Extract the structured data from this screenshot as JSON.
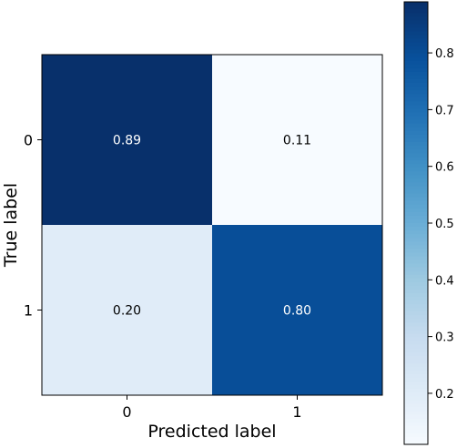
{
  "chart_data": {
    "type": "heatmap",
    "title": "",
    "xlabel": "Predicted label",
    "ylabel": "True label",
    "x_categories": [
      "0",
      "1"
    ],
    "y_categories": [
      "0",
      "1"
    ],
    "values": [
      [
        0.89,
        0.11
      ],
      [
        0.2,
        0.8
      ]
    ],
    "cell_labels": [
      [
        "0.89",
        "0.11"
      ],
      [
        "0.20",
        "0.80"
      ]
    ],
    "colormap": "Blues",
    "colorbar": {
      "range": [
        0.11,
        0.89
      ],
      "ticks": [
        0.2,
        0.3,
        0.4,
        0.5,
        0.6,
        0.7,
        0.8
      ],
      "tick_labels": [
        "0.2",
        "0.3",
        "0.4",
        "0.5",
        "0.6",
        "0.7",
        "0.8"
      ]
    },
    "grid": false
  }
}
